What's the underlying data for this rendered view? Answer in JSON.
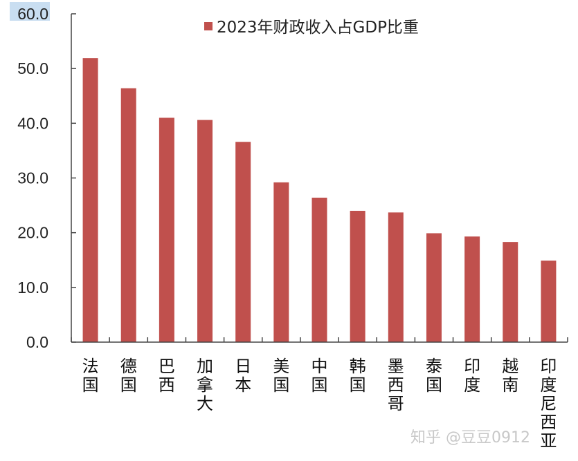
{
  "chart_data": {
    "type": "bar",
    "title": "",
    "xlabel": "",
    "ylabel": "",
    "ylim": [
      0,
      60
    ],
    "yticks": [
      "0.0",
      "10.0",
      "20.0",
      "30.0",
      "40.0",
      "50.0",
      "60.0"
    ],
    "grid": false,
    "legend_placement": "top-center",
    "categories": [
      "法国",
      "德国",
      "巴西",
      "加拿大",
      "日本",
      "美国",
      "中国",
      "韩国",
      "墨西哥",
      "泰国",
      "印度",
      "越南",
      "印度尼西亚"
    ],
    "series": [
      {
        "name": "2023年财政收入占GDP比重",
        "color": "#c0504d",
        "values": [
          51.9,
          46.4,
          41.0,
          40.6,
          36.6,
          29.2,
          26.4,
          24.0,
          23.7,
          19.9,
          19.3,
          18.3,
          14.9
        ]
      }
    ]
  },
  "watermark": "知乎 @豆豆0912",
  "colors": {
    "bar": "#c0504d",
    "axis": "#444444",
    "highlight": "#9dc3e6"
  }
}
